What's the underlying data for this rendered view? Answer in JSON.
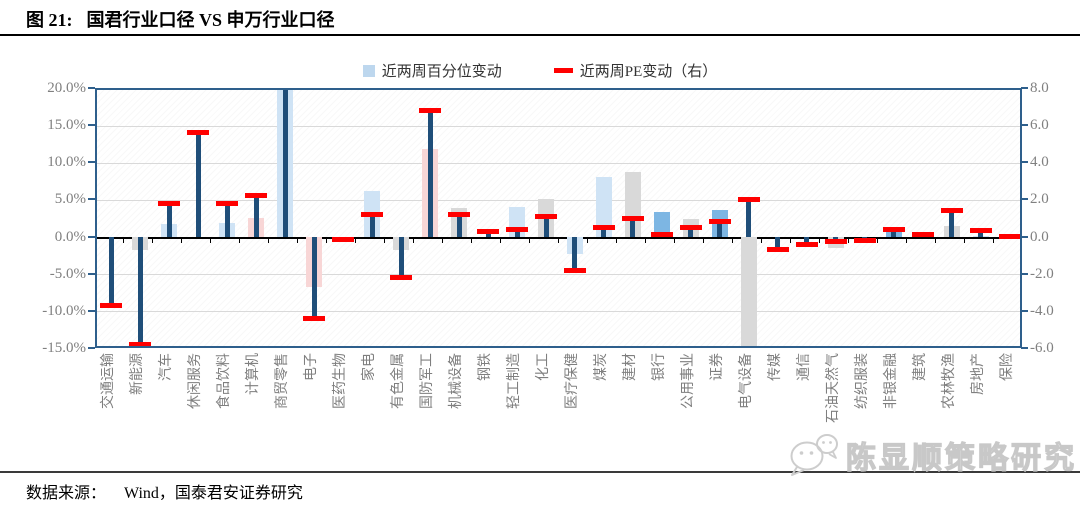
{
  "figure": {
    "caption_prefix": "图 21:",
    "title": "国君行业口径 VS 申万行业口径",
    "source_label": "数据来源：",
    "source_text": "Wind，国泰君安证券研究",
    "watermark": "陈显顺策略研究"
  },
  "colors": {
    "navy_stem": "#1f4e79",
    "plot_border": "#2e5f8c",
    "red": "#ff0000",
    "legend_swatch_blue": "#bdd7ee",
    "grid": "#d9d9d9",
    "axis_text": "#808080",
    "bar_palette": {
      "blue": "#cfe3f5",
      "mediumblue": "#7db6e3",
      "pink": "#f8d6d6",
      "gray": "#d9d9d9"
    }
  },
  "chart_data": {
    "type": "bar",
    "title": "国君行业口径 VS 申万行业口径",
    "legend": [
      {
        "label": "近两周百分位变动",
        "marker": "square",
        "color": "#bdd7ee"
      },
      {
        "label": "近两周PE变动（右）",
        "marker": "dash",
        "color": "#ff0000"
      }
    ],
    "left_axis": {
      "ticks": [
        "20.0%",
        "15.0%",
        "10.0%",
        "5.0%",
        "0.0%",
        "-5.0%",
        "-10.0%",
        "-15.0%"
      ],
      "min": -15,
      "max": 20
    },
    "right_axis": {
      "ticks": [
        "8.0",
        "6.0",
        "4.0",
        "2.0",
        "0.0",
        "-2.0",
        "-4.0",
        "-6.0"
      ],
      "min": -6,
      "max": 8
    },
    "grid": true,
    "legend_position": "top-center",
    "categories": [
      "交通运输",
      "新能源",
      "汽车",
      "休闲服务",
      "食品饮料",
      "计算机",
      "商贸零售",
      "电子",
      "医药生物",
      "家电",
      "有色金属",
      "国防军工",
      "机械设备",
      "钢铁",
      "轻工制造",
      "化工",
      "医疗保健",
      "煤炭",
      "建材",
      "银行",
      "公用事业",
      "证券",
      "电气设备",
      "传媒",
      "通信",
      "石油天然气",
      "纺织服装",
      "非银金融",
      "建筑",
      "农林牧渔",
      "房地产",
      "保险"
    ],
    "series": [
      {
        "name": "近两周百分位变动",
        "axis": "left",
        "unit": "%",
        "values": [
          null,
          -1.8,
          1.9,
          null,
          2.1,
          2.8,
          22,
          -6.8,
          null,
          6.4,
          -1.8,
          12.1,
          4.1,
          null,
          4.3,
          5.3,
          -2.4,
          8.3,
          8.9,
          3.6,
          2.7,
          3.9,
          -16.5,
          null,
          null,
          -1.5,
          null,
          1.1,
          0.9,
          1.7,
          0.4,
          null
        ],
        "bar_colors": [
          null,
          "gray",
          "blue",
          null,
          "blue",
          "pink",
          "blue",
          "pink",
          null,
          "blue",
          "gray",
          "pink",
          "gray",
          null,
          "blue",
          "gray",
          "blue",
          "blue",
          "gray",
          "mediumblue",
          "gray",
          "mediumblue",
          "gray",
          null,
          null,
          "gray",
          null,
          "mediumblue",
          "gray",
          "gray",
          "blue",
          null
        ]
      },
      {
        "name": "近两周PE变动（右）",
        "axis": "right",
        "values": [
          -3.6,
          -5.7,
          1.9,
          5.7,
          1.9,
          2.3,
          9.0,
          -4.3,
          -0.05,
          1.3,
          -2.1,
          6.9,
          1.3,
          0.4,
          0.5,
          1.2,
          -1.7,
          0.6,
          1.1,
          0.2,
          0.6,
          0.9,
          2.1,
          -0.6,
          -0.3,
          -0.15,
          -0.1,
          0.5,
          0.2,
          1.5,
          0.45,
          0.1
        ]
      }
    ]
  }
}
